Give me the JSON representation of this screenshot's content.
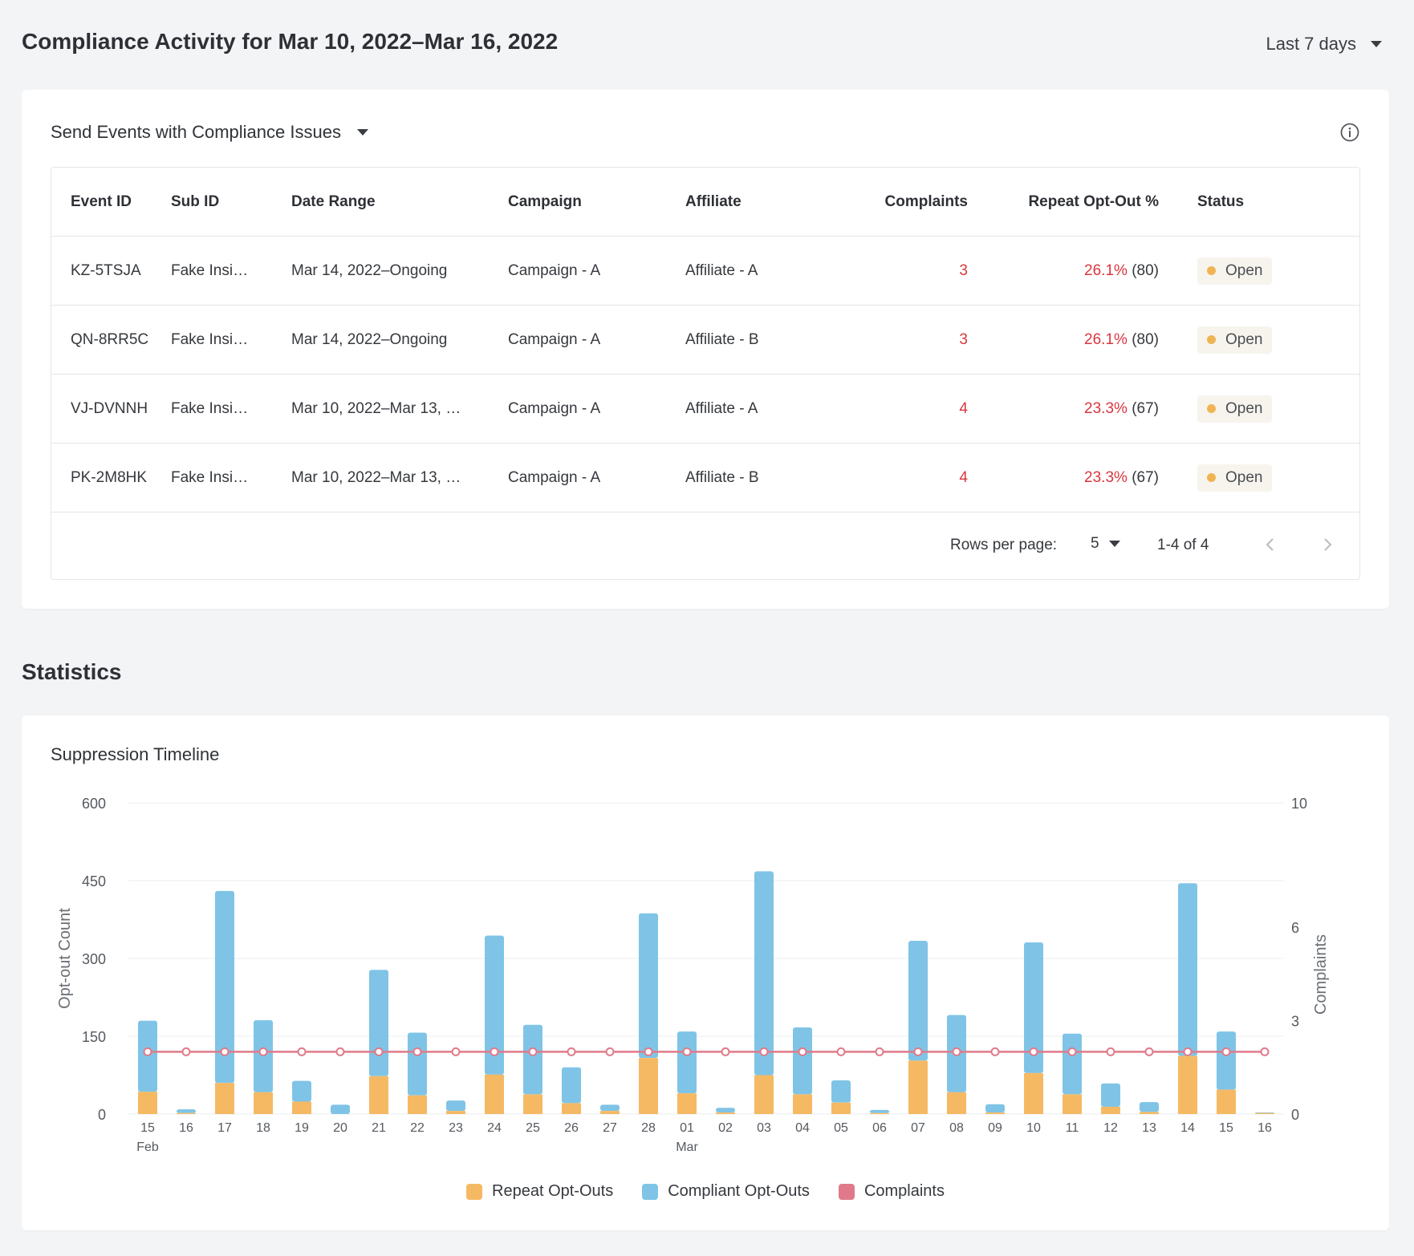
{
  "header": {
    "title": "Compliance Activity for Mar 10, 2022–Mar 16, 2022",
    "range_label": "Last 7 days"
  },
  "events_card": {
    "title": "Send Events with Compliance Issues",
    "columns": [
      "Event ID",
      "Sub ID",
      "Date Range",
      "Campaign",
      "Affiliate",
      "Complaints",
      "Repeat Opt-Out %",
      "Status"
    ],
    "rows": [
      {
        "event_id": "KZ-5TSJA",
        "sub_id": "Fake Insi…",
        "date_range": "Mar 14, 2022–Ongoing",
        "campaign": "Campaign - A",
        "affiliate": "Affiliate - A",
        "complaints": "3",
        "repeat_pct": "26.1%",
        "repeat_count": "(80)",
        "status": "Open"
      },
      {
        "event_id": "QN-8RR5C",
        "sub_id": "Fake Insi…",
        "date_range": "Mar 14, 2022–Ongoing",
        "campaign": "Campaign - A",
        "affiliate": "Affiliate - B",
        "complaints": "3",
        "repeat_pct": "26.1%",
        "repeat_count": "(80)",
        "status": "Open"
      },
      {
        "event_id": "VJ-DVNNH",
        "sub_id": "Fake Insi…",
        "date_range": "Mar 10, 2022–Mar 13, …",
        "campaign": "Campaign - A",
        "affiliate": "Affiliate - A",
        "complaints": "4",
        "repeat_pct": "23.3%",
        "repeat_count": "(67)",
        "status": "Open"
      },
      {
        "event_id": "PK-2M8HK",
        "sub_id": "Fake Insi…",
        "date_range": "Mar 10, 2022–Mar 13, …",
        "campaign": "Campaign - A",
        "affiliate": "Affiliate - B",
        "complaints": "4",
        "repeat_pct": "23.3%",
        "repeat_count": "(67)",
        "status": "Open"
      }
    ],
    "pager": {
      "rows_per_page_label": "Rows per page:",
      "rows_per_page": "5",
      "count": "1-4 of 4"
    }
  },
  "statistics": {
    "section_title": "Statistics",
    "chart_title": "Suppression Timeline"
  },
  "colors": {
    "repeat": "#f5b964",
    "compliant": "#7fc4e6",
    "complaints": "#e07a8a",
    "status_open": "#f0b453",
    "alert": "#d9363e"
  },
  "chart_data": {
    "type": "bar",
    "title": "Suppression Timeline",
    "ylabel": "Opt-out Count",
    "y2label": "Complaints",
    "ylim": [
      0,
      600
    ],
    "y_ticks": [
      "0",
      "150",
      "300",
      "450",
      "600"
    ],
    "y2lim": [
      0,
      10
    ],
    "y2_ticks": [
      "0",
      "3",
      "6",
      "10"
    ],
    "categories": [
      "15",
      "16",
      "17",
      "18",
      "19",
      "20",
      "21",
      "22",
      "23",
      "24",
      "25",
      "26",
      "27",
      "28",
      "01",
      "02",
      "03",
      "04",
      "05",
      "06",
      "07",
      "08",
      "09",
      "10",
      "11",
      "12",
      "13",
      "14",
      "15",
      "16"
    ],
    "month_labels": [
      {
        "index": 0,
        "label": "Feb"
      },
      {
        "index": 14,
        "label": "Mar"
      }
    ],
    "series": [
      {
        "name": "Repeat Opt-Outs",
        "type": "bar",
        "stack": "opt",
        "values": [
          43,
          2,
          60,
          42,
          24,
          0,
          73,
          36,
          6,
          76,
          38,
          21,
          6,
          108,
          40,
          3,
          75,
          38,
          22,
          2,
          103,
          42,
          3,
          79,
          38,
          14,
          4,
          112,
          47,
          2
        ]
      },
      {
        "name": "Compliant Opt-Outs",
        "type": "bar",
        "stack": "opt",
        "values": [
          137,
          7,
          370,
          139,
          40,
          18,
          205,
          121,
          20,
          268,
          134,
          69,
          12,
          279,
          119,
          9,
          393,
          129,
          43,
          6,
          231,
          149,
          16,
          252,
          117,
          45,
          19,
          333,
          112,
          1
        ]
      },
      {
        "name": "Complaints",
        "type": "line",
        "axis": "right",
        "values": [
          2,
          2,
          2,
          2,
          2,
          2,
          2,
          2,
          2,
          2,
          2,
          2,
          2,
          2,
          2,
          2,
          2,
          2,
          2,
          2,
          2,
          2,
          2,
          2,
          2,
          2,
          2,
          2,
          2,
          2
        ]
      }
    ],
    "legend": [
      "Repeat Opt-Outs",
      "Compliant Opt-Outs",
      "Complaints"
    ]
  }
}
